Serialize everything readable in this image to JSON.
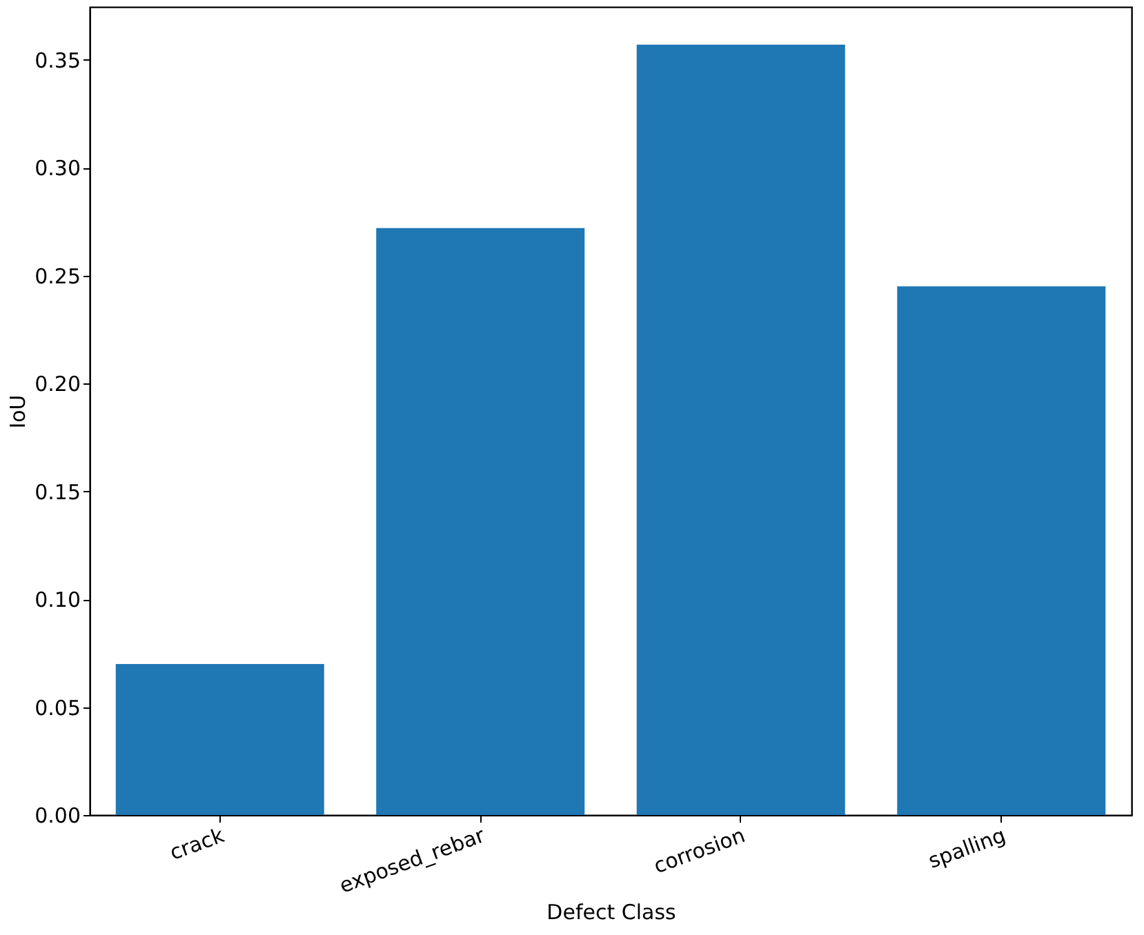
{
  "chart_data": {
    "type": "bar",
    "xlabel": "Defect Class",
    "ylabel": "IoU",
    "categories": [
      "crack",
      "exposed_rebar",
      "corrosion",
      "spalling"
    ],
    "values": [
      0.07,
      0.272,
      0.357,
      0.245
    ],
    "color": "#1f77b4",
    "ylim": [
      0,
      0.3745
    ],
    "yticks": [
      {
        "value": 0,
        "label": "0.00"
      },
      0.05,
      {
        "value": 0.1,
        "label": "0.10"
      },
      0.15,
      {
        "value": 0.2,
        "label": "0.20"
      },
      0.25,
      {
        "value": 0.3,
        "label": "0.30"
      },
      0.35
    ],
    "grid": false
  }
}
